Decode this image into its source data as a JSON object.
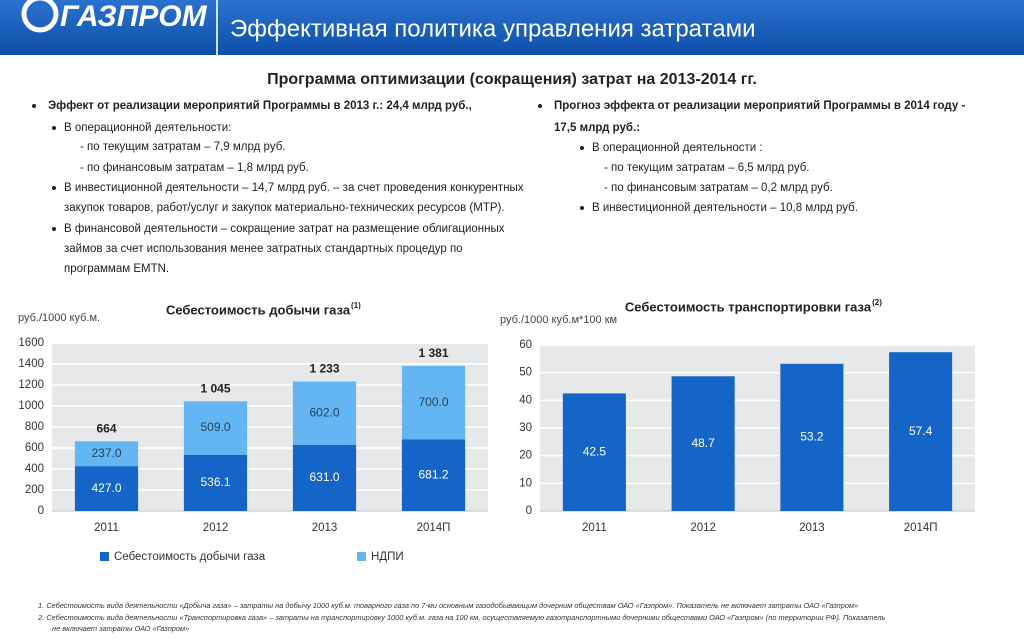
{
  "header": {
    "logo": "ГАЗПРОМ",
    "title": "Эффективная политика управления затратами"
  },
  "program_title": "Программа оптимизации (сокращения) затрат на 2013-2014 гг.",
  "left": [
    "Эффект от реализации мероприятий Программы в 2013 г.: 24,4 млрд руб.,",
    "В операционной деятельности:",
    "- по текущим затратам – 7,9 млрд руб.",
    "- по финансовым затратам – 1,8 млрд руб.",
    "В инвестиционной деятельности – 14,7 млрд руб.  – за счет проведения конкурентных",
    "закупок товаров, работ/услуг и закупок материально-технических ресурсов (МТР).",
    "В финансовой деятельности – сокращение затрат на размещение облигационных",
    "займов за счет использования менее затратных стандартных процедур по",
    "программам EMTN."
  ],
  "right": [
    "Прогноз эффекта от реализации мероприятий Программы в 2014 году  -",
    "17,5 млрд руб.:",
    "В операционной деятельности :",
    "- по текущим затратам – 6,5 млрд руб.",
    "- по финансовым затратам – 0,2 млрд руб.",
    "В инвестиционной деятельности – 10,8 млрд руб."
  ],
  "chart_data": [
    {
      "type": "bar",
      "stacked": true,
      "title": "Себестоимость добычи газа",
      "title_note": "(1)",
      "y_label": "руб./1000 куб.м.",
      "categories": [
        "2011",
        "2012",
        "2013",
        "2014П"
      ],
      "series": [
        {
          "name": "Себестоимость добычи газа",
          "color": "#1565c8",
          "values": [
            427.0,
            536.1,
            631.0,
            681.2
          ],
          "value_labels": [
            "427.0",
            "536.1",
            "631.0",
            "681.2"
          ]
        },
        {
          "name": "НДПИ",
          "color": "#63b6f2",
          "values": [
            237.0,
            509.0,
            602.0,
            700.0
          ],
          "value_labels": [
            "237.0",
            "509.0",
            "602.0",
            "700.0"
          ]
        }
      ],
      "totals": [
        664,
        1045,
        1233,
        1381
      ],
      "total_labels": [
        "664",
        "1 045",
        "1 233",
        "1 381"
      ],
      "ylim": [
        0,
        1600
      ],
      "yticks": [
        0,
        200,
        400,
        600,
        800,
        1000,
        1200,
        1400,
        1600
      ],
      "grid": true,
      "legend": "bottom"
    },
    {
      "type": "bar",
      "title": "Себестоимость транспортировки газа",
      "title_note": "(2)",
      "y_label": "руб./1000 куб.м*100 км",
      "categories": [
        "2011",
        "2012",
        "2013",
        "2014П"
      ],
      "values": [
        42.5,
        48.7,
        53.2,
        57.4
      ],
      "value_labels": [
        "42.5",
        "48.7",
        "53.2",
        "57.4"
      ],
      "color": "#1565c8",
      "ylim": [
        0,
        60
      ],
      "yticks": [
        0,
        10,
        20,
        30,
        40,
        50,
        60
      ],
      "grid": true
    }
  ],
  "footnotes": [
    "1.   Себестоимость вида деятельности «Добыча газа» – затраты на добычу 1000 куб.м. товарного газа по 7-ми основным газодобывающим дочерним обществам ОАО «Газпром». Показатель не включает затраты ОАО «Газпром»",
    "2.   Себестоимость вида деятельности «Транспортировка газа» – затраты на транспортировку 1000 куб.м. газа на 100 км, осуществляемую газотранспортными дочерними обществами ОАО «Газпром» (по территории РФ). Показатель",
    "не включает затраты ОАО «Газпром»"
  ]
}
